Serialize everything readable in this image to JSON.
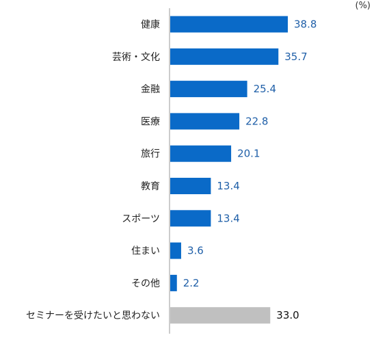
{
  "chart_data": {
    "type": "bar",
    "orientation": "horizontal",
    "unit": "(%)",
    "categories": [
      "健康",
      "芸術・文化",
      "金融",
      "医療",
      "旅行",
      "教育",
      "スポーツ",
      "住まい",
      "その他",
      "セミナーを受けたいと思わない"
    ],
    "values": [
      38.8,
      35.7,
      25.4,
      22.8,
      20.1,
      13.4,
      13.4,
      3.6,
      2.2,
      33.0
    ],
    "value_labels": [
      "38.8",
      "35.7",
      "25.4",
      "22.8",
      "20.1",
      "13.4",
      "13.4",
      "3.6",
      "2.2",
      "33.0"
    ],
    "xlim": [
      0,
      45
    ],
    "grid": false,
    "legend": "none",
    "colors": {
      "primary": "#0A6AC8",
      "highlight": "#C0C0C0",
      "axis": "#999999",
      "primary_label": "#1F5FA8",
      "highlight_label": "#111111"
    },
    "highlight_index": 9
  }
}
